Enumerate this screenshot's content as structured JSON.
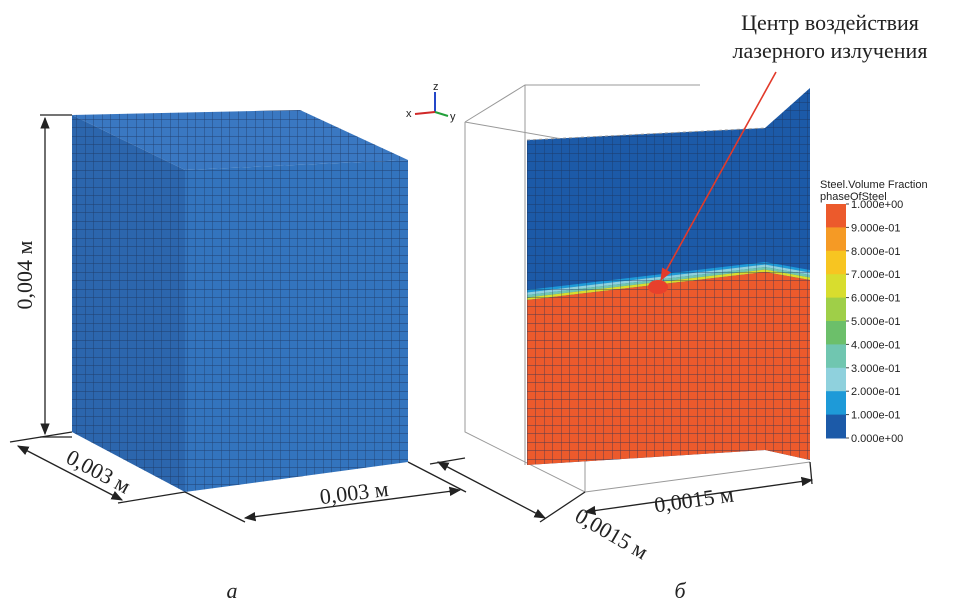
{
  "panel_a": {
    "label": "а",
    "height_dim": "0,004 м",
    "depth_dim": "0,003 м",
    "width_dim": "0,003 м"
  },
  "panel_b": {
    "label": "б",
    "annotation": [
      "Центр воздействия",
      "лазерного излучения"
    ],
    "depth_dim": "0,0015 м",
    "width_dim": "0,0015 м",
    "axes": {
      "z": "z",
      "x": "x",
      "y": "y"
    },
    "legend": {
      "title": "Steel.Volume Fraction",
      "subtitle": "phaseOfSteel",
      "labels": [
        "1.000e+00",
        "9.000e-01",
        "8.000e-01",
        "7.000e-01",
        "6.000e-01",
        "5.000e-01",
        "4.000e-01",
        "3.000e-01",
        "2.000e-01",
        "1.000e-01",
        "0.000e+00"
      ],
      "colors": [
        "#ec5a2c",
        "#f59a25",
        "#f7c521",
        "#d8dd2e",
        "#9fcf48",
        "#6cbf6a",
        "#70c6b0",
        "#8fd1dd",
        "#1e9ad8",
        "#1c5aa8"
      ]
    }
  }
}
